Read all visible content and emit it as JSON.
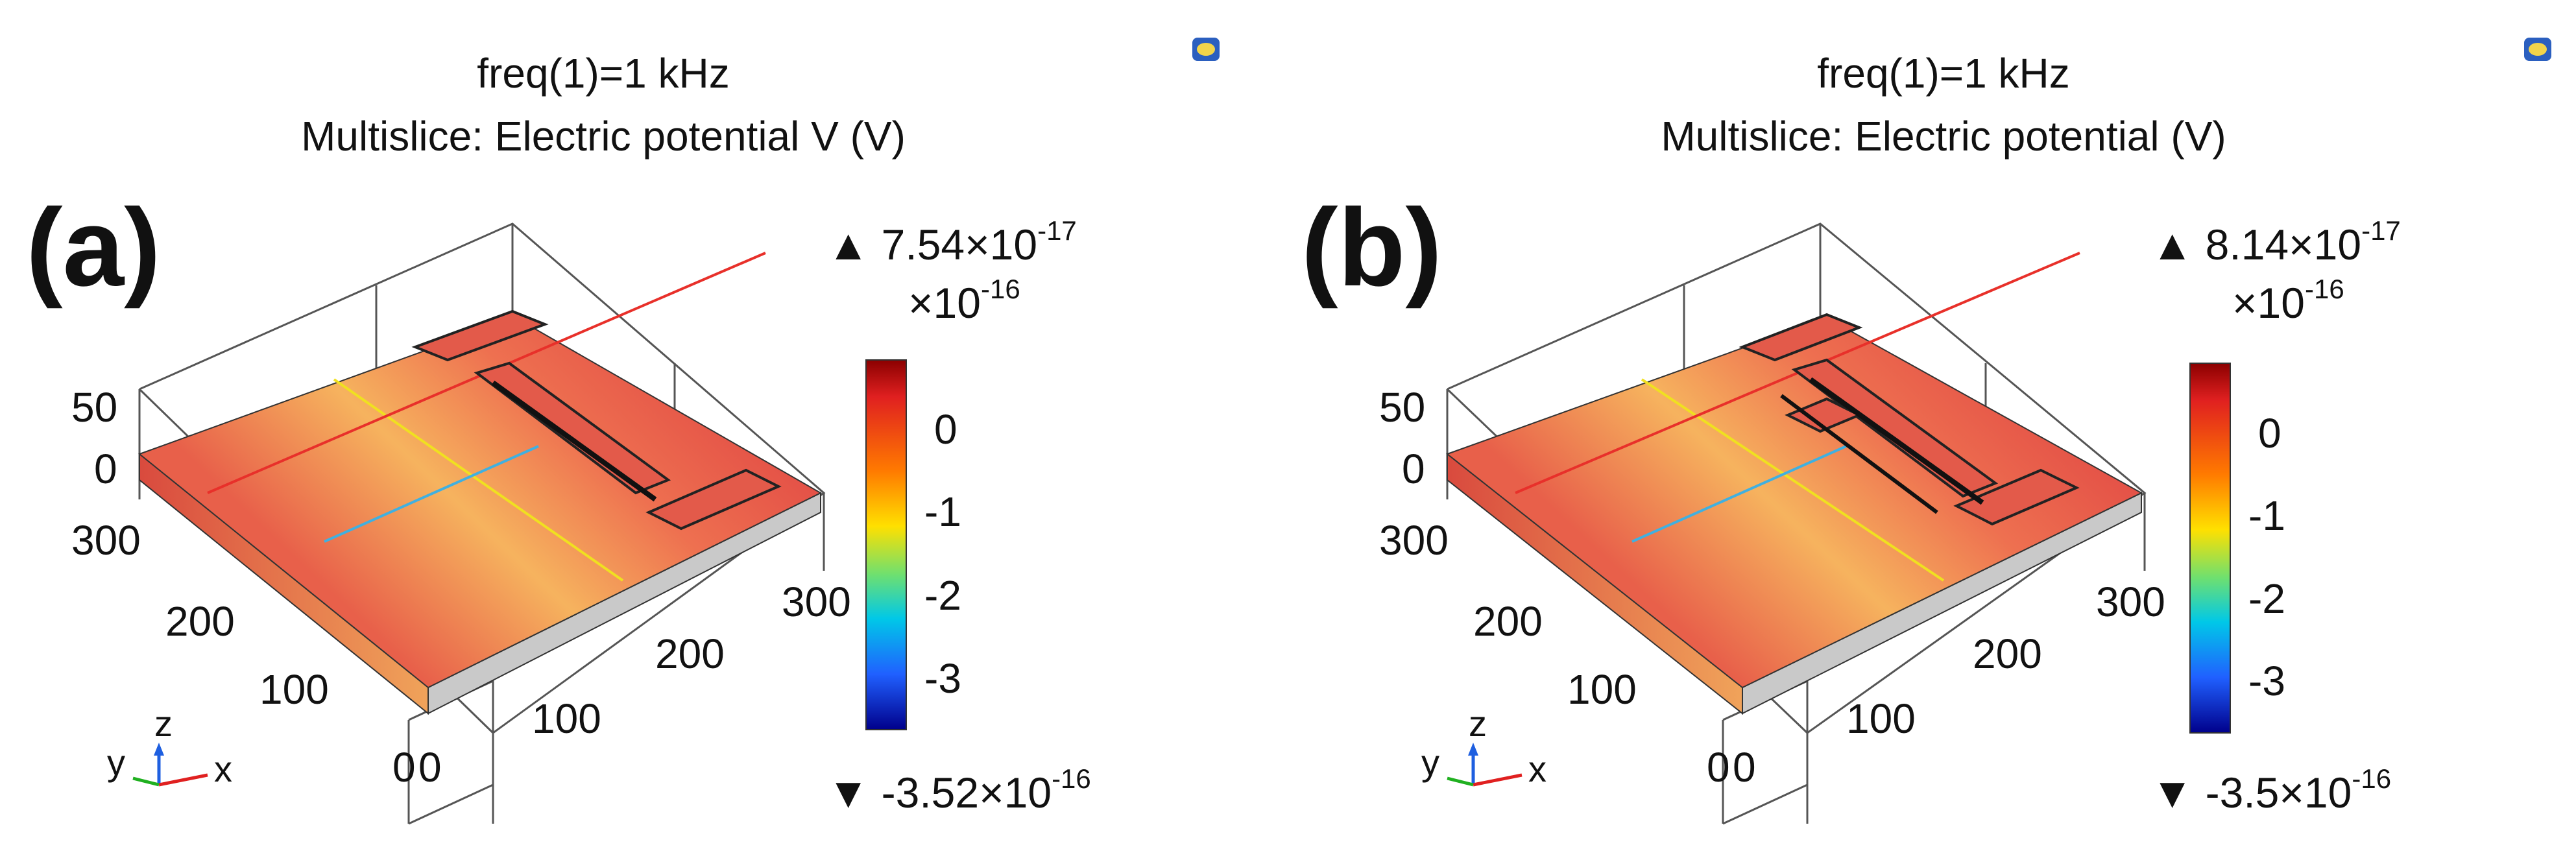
{
  "panels": [
    {
      "id": "a",
      "panel_label": "(a)",
      "title_line1": "freq(1)=1 kHz",
      "title_line2": "Multislice: Electric potential V (V)",
      "max_prefix": "▲ 7.54×10",
      "max_exp": "-17",
      "min_prefix": "▼ -3.52×10",
      "min_exp": "-16",
      "scale_prefix": "×10",
      "scale_exp": "-16",
      "colorbar_ticks": [
        "0",
        "-1",
        "-2",
        "-3"
      ],
      "z_ticks": [
        "50",
        "0"
      ],
      "y_ticks": [
        "300",
        "200",
        "100",
        "0"
      ],
      "x_ticks": [
        "0",
        "100",
        "200",
        "300"
      ],
      "triad_labels": {
        "x": "x",
        "y": "y",
        "z": "z"
      }
    },
    {
      "id": "b",
      "panel_label": "(b)",
      "title_line1": "freq(1)=1 kHz",
      "title_line2": "Multislice: Electric potential (V)",
      "max_prefix": "▲ 8.14×10",
      "max_exp": "-17",
      "min_prefix": "▼ -3.5×10",
      "min_exp": "-16",
      "scale_prefix": "×10",
      "scale_exp": "-16",
      "colorbar_ticks": [
        "0",
        "-1",
        "-2",
        "-3"
      ],
      "z_ticks": [
        "50",
        "0"
      ],
      "y_ticks": [
        "300",
        "200",
        "100",
        "0"
      ],
      "x_ticks": [
        "0",
        "100",
        "200",
        "300"
      ],
      "triad_labels": {
        "x": "x",
        "y": "y",
        "z": "z"
      }
    }
  ],
  "colors": {
    "surface": "#e8504a",
    "surface_light": "#f4b75a",
    "colorbar": [
      "#8b0000",
      "#e02020",
      "#ff7a00",
      "#ffe000",
      "#6fe06f",
      "#00c8e8",
      "#2060ff",
      "#00008b"
    ],
    "axis_x": "#e02020",
    "axis_y": "#20b020",
    "axis_z": "#1e5fe0",
    "text": "#111111"
  },
  "icon": "comsol-logo-icon"
}
